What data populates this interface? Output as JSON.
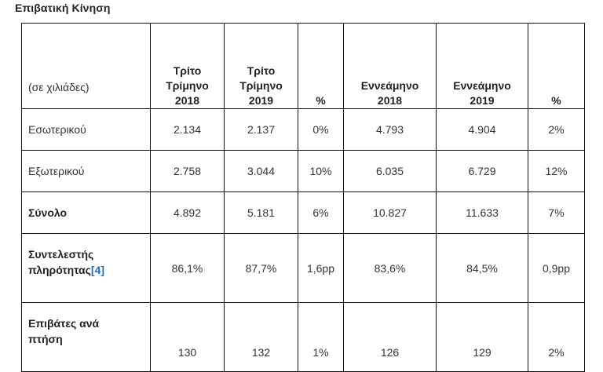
{
  "title": "Επιβατική Κίνηση",
  "table": {
    "unit_label": "(σε χιλιάδες)",
    "headers": [
      [
        "Τρίτο",
        "Τρίμηνο",
        "2018"
      ],
      [
        "Τρίτο",
        "Τρίμηνο",
        "2019"
      ],
      [
        "%"
      ],
      [
        "Εννεάμηνο",
        "2018"
      ],
      [
        "Εννεάμηνο",
        "2019"
      ],
      [
        "%"
      ]
    ],
    "rows": [
      {
        "label": "Εσωτερικού",
        "values": [
          "2.134",
          "2.137",
          "0%",
          "4.793",
          "4.904",
          "2%"
        ]
      },
      {
        "label": "Εξωτερικού",
        "values": [
          "2.758",
          "3.044",
          "10%",
          "6.035",
          "6.729",
          "12%"
        ]
      },
      {
        "label": "Σύνολο",
        "values": [
          "4.892",
          "5.181",
          "6%",
          "10.827",
          "11.633",
          "7%"
        ]
      },
      {
        "label_line1": "Συντελεστής",
        "label_line2": "πληρότητας",
        "ref": "[4]",
        "values": [
          "86,1%",
          "87,7%",
          "1,6pp",
          "83,6%",
          "84,5%",
          "0,9pp"
        ]
      },
      {
        "label_line1": "Επιβάτες ανά",
        "label_line2": "πτήση",
        "values": [
          "130",
          "132",
          "1%",
          "126",
          "129",
          "2%"
        ]
      }
    ]
  },
  "colors": {
    "link": "#1a6fd1",
    "border": "#111111",
    "text": "#333333"
  }
}
